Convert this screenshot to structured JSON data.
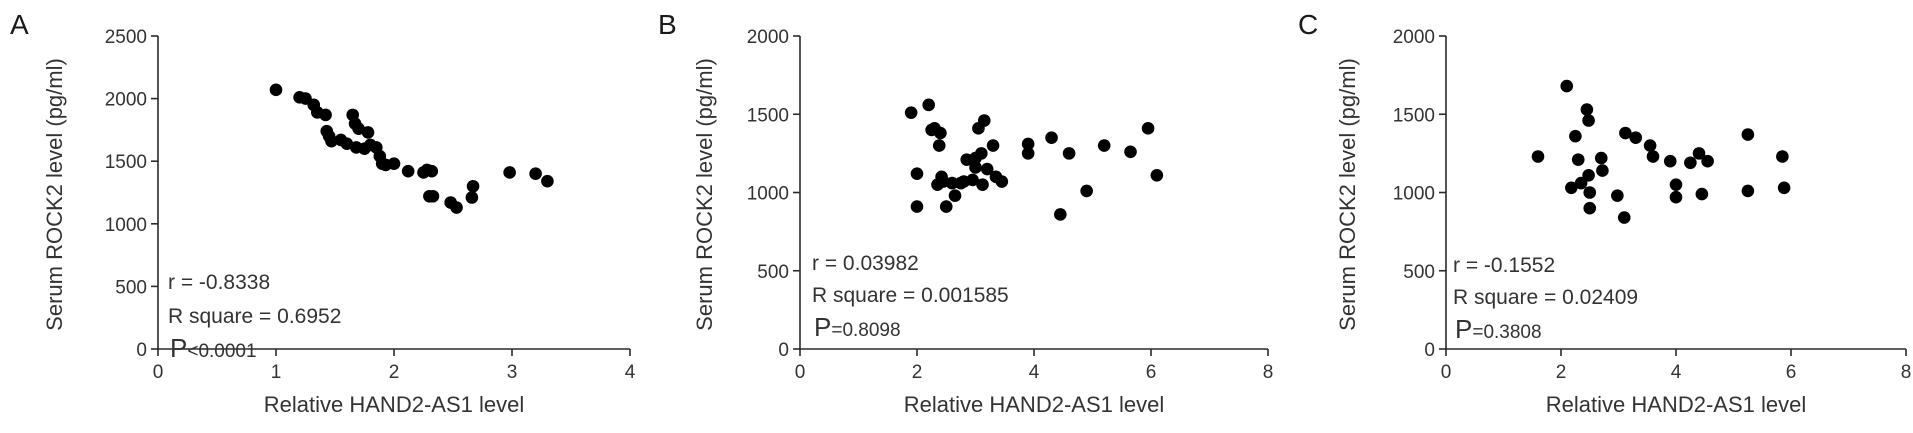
{
  "chart_data": [
    {
      "type": "scatter",
      "panel": "A",
      "xlabel": "Relative HAND2-AS1 level",
      "ylabel": "Serum ROCK2 level (pg/ml)",
      "xlim": [
        0,
        4
      ],
      "ylim": [
        0,
        2500
      ],
      "xticks": [
        "0",
        "1",
        "2",
        "3",
        "4"
      ],
      "yticks": [
        "0",
        "500",
        "1000",
        "1500",
        "2000",
        "2500"
      ],
      "stats": {
        "r": "r = -0.8338",
        "r_square": "R square = 0.6952",
        "p_symbol": "P",
        "p_value": "<0.0001"
      },
      "points": [
        [
          1.0,
          2070
        ],
        [
          1.2,
          2010
        ],
        [
          1.25,
          2000
        ],
        [
          1.32,
          1950
        ],
        [
          1.35,
          1890
        ],
        [
          1.42,
          1870
        ],
        [
          1.43,
          1740
        ],
        [
          1.45,
          1700
        ],
        [
          1.47,
          1660
        ],
        [
          1.55,
          1670
        ],
        [
          1.6,
          1640
        ],
        [
          1.65,
          1870
        ],
        [
          1.67,
          1800
        ],
        [
          1.68,
          1610
        ],
        [
          1.7,
          1760
        ],
        [
          1.75,
          1600
        ],
        [
          1.78,
          1730
        ],
        [
          1.8,
          1630
        ],
        [
          1.85,
          1610
        ],
        [
          1.88,
          1540
        ],
        [
          1.9,
          1480
        ],
        [
          1.93,
          1470
        ],
        [
          2.0,
          1480
        ],
        [
          2.12,
          1420
        ],
        [
          2.25,
          1410
        ],
        [
          2.28,
          1430
        ],
        [
          2.32,
          1420
        ],
        [
          2.3,
          1220
        ],
        [
          2.33,
          1220
        ],
        [
          2.48,
          1170
        ],
        [
          2.53,
          1130
        ],
        [
          2.66,
          1210
        ],
        [
          2.67,
          1300
        ],
        [
          2.98,
          1410
        ],
        [
          3.2,
          1400
        ],
        [
          3.3,
          1340
        ]
      ]
    },
    {
      "type": "scatter",
      "panel": "B",
      "xlabel": "Relative HAND2-AS1 level",
      "ylabel": "Serum ROCK2 level (pg/ml)",
      "xlim": [
        0,
        8
      ],
      "ylim": [
        0,
        2000
      ],
      "xticks": [
        "0",
        "2",
        "4",
        "6",
        "8"
      ],
      "yticks": [
        "0",
        "500",
        "1000",
        "1500",
        "2000"
      ],
      "stats": {
        "r": "r = 0.03982",
        "r_square": "R square = 0.001585",
        "p_symbol": "P",
        "p_value": "=0.8098"
      },
      "points": [
        [
          1.9,
          1510
        ],
        [
          2.0,
          1120
        ],
        [
          2.0,
          910
        ],
        [
          2.2,
          1560
        ],
        [
          2.25,
          1400
        ],
        [
          2.3,
          1410
        ],
        [
          2.35,
          1050
        ],
        [
          2.38,
          1300
        ],
        [
          2.4,
          1380
        ],
        [
          2.42,
          1100
        ],
        [
          2.45,
          1070
        ],
        [
          2.5,
          910
        ],
        [
          2.6,
          1060
        ],
        [
          2.65,
          980
        ],
        [
          2.75,
          1060
        ],
        [
          2.8,
          1070
        ],
        [
          2.85,
          1210
        ],
        [
          2.95,
          1080
        ],
        [
          3.0,
          1160
        ],
        [
          3.0,
          1220
        ],
        [
          3.05,
          1410
        ],
        [
          3.1,
          1250
        ],
        [
          3.12,
          1050
        ],
        [
          3.15,
          1460
        ],
        [
          3.2,
          1150
        ],
        [
          3.3,
          1300
        ],
        [
          3.35,
          1100
        ],
        [
          3.45,
          1070
        ],
        [
          3.9,
          1310
        ],
        [
          3.9,
          1250
        ],
        [
          4.3,
          1350
        ],
        [
          4.45,
          860
        ],
        [
          4.6,
          1250
        ],
        [
          4.9,
          1010
        ],
        [
          5.2,
          1300
        ],
        [
          5.65,
          1260
        ],
        [
          5.95,
          1410
        ],
        [
          6.1,
          1110
        ]
      ]
    },
    {
      "type": "scatter",
      "panel": "C",
      "xlabel": "Relative HAND2-AS1 level",
      "ylabel": "Serum ROCK2 level (pg/ml)",
      "xlim": [
        0,
        8
      ],
      "ylim": [
        0,
        2000
      ],
      "xticks": [
        "0",
        "2",
        "4",
        "6",
        "8"
      ],
      "yticks": [
        "0",
        "500",
        "1000",
        "1500",
        "2000"
      ],
      "stats": {
        "r": "r = -0.1552",
        "r_square": "R square = 0.02409",
        "p_symbol": "P",
        "p_value": "=0.3808"
      },
      "points": [
        [
          1.6,
          1230
        ],
        [
          2.1,
          1680
        ],
        [
          2.18,
          1030
        ],
        [
          2.25,
          1360
        ],
        [
          2.3,
          1210
        ],
        [
          2.35,
          1060
        ],
        [
          2.45,
          1530
        ],
        [
          2.48,
          1460
        ],
        [
          2.48,
          1110
        ],
        [
          2.5,
          1000
        ],
        [
          2.5,
          900
        ],
        [
          2.7,
          1220
        ],
        [
          2.72,
          1140
        ],
        [
          2.98,
          980
        ],
        [
          3.1,
          840
        ],
        [
          3.12,
          1380
        ],
        [
          3.3,
          1350
        ],
        [
          3.55,
          1300
        ],
        [
          3.6,
          1230
        ],
        [
          3.9,
          1200
        ],
        [
          4.0,
          1050
        ],
        [
          4.0,
          970
        ],
        [
          4.25,
          1190
        ],
        [
          4.4,
          1250
        ],
        [
          4.45,
          990
        ],
        [
          4.55,
          1200
        ],
        [
          5.25,
          1370
        ],
        [
          5.25,
          1010
        ],
        [
          5.85,
          1230
        ],
        [
          5.88,
          1030
        ]
      ]
    }
  ]
}
